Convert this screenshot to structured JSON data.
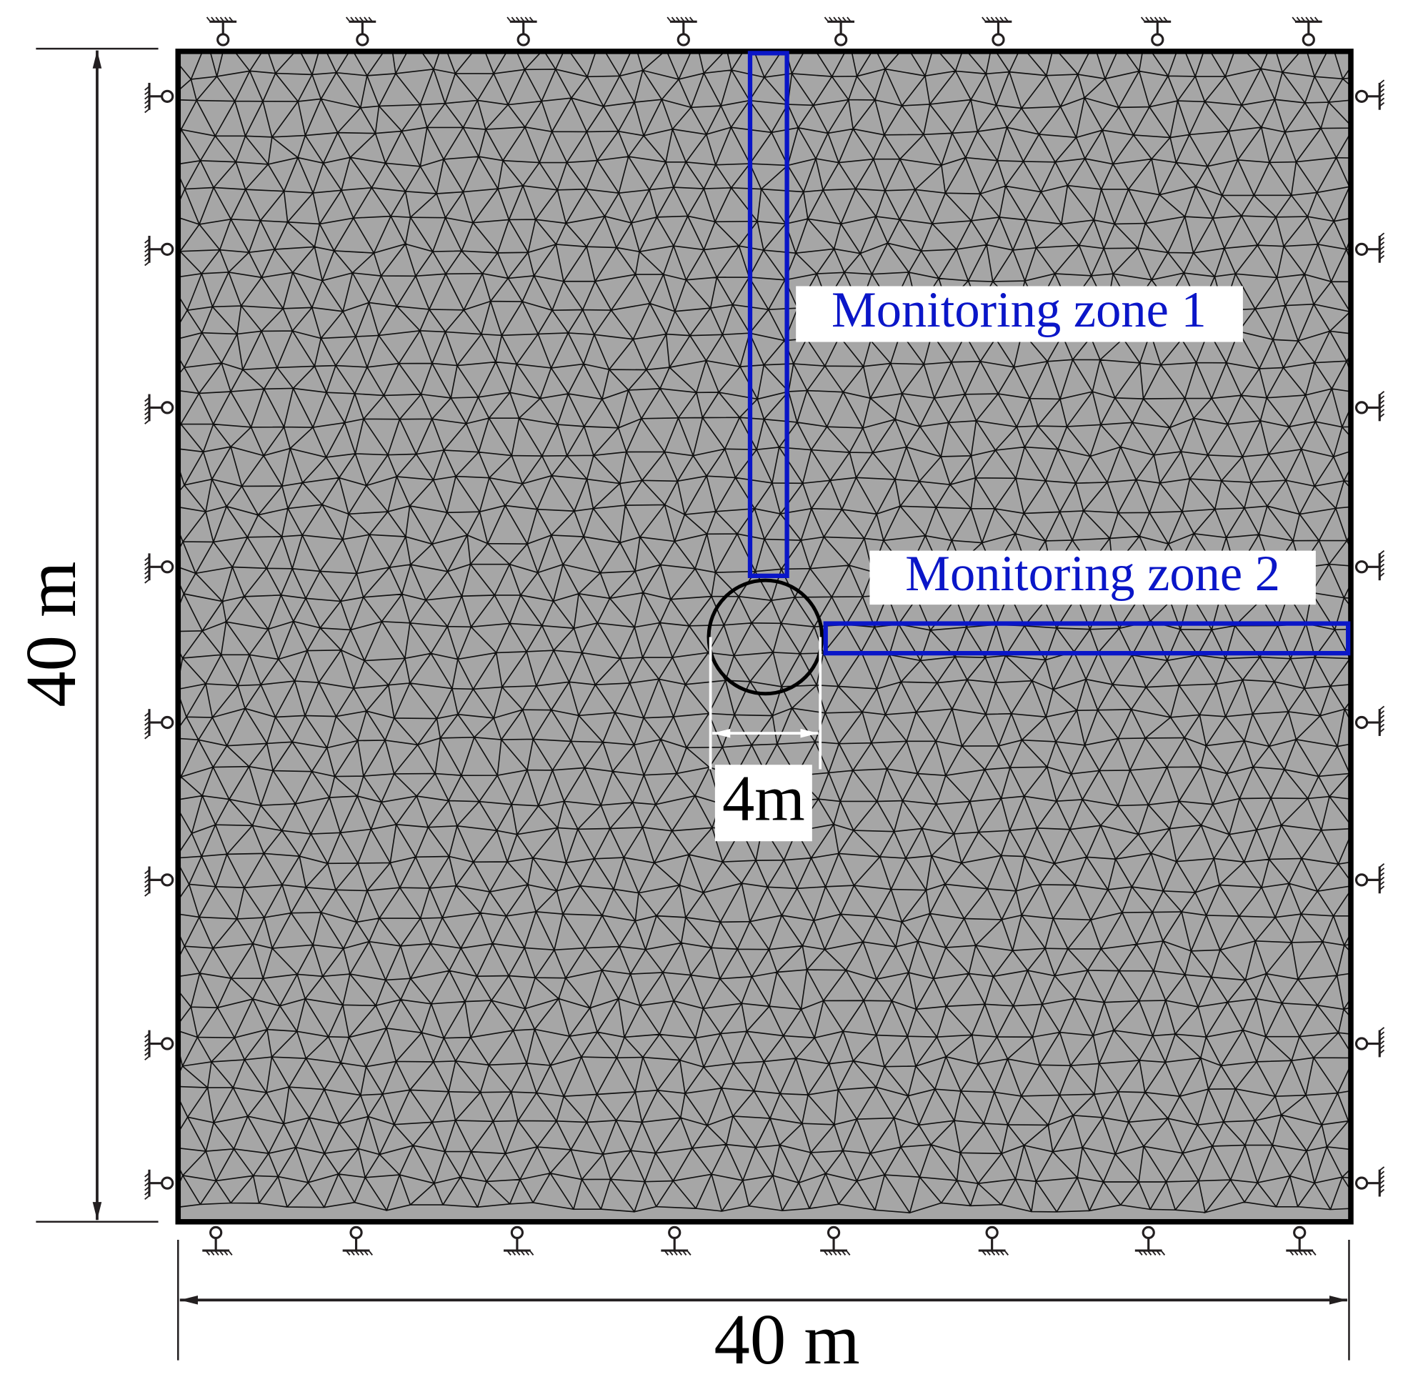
{
  "labels": {
    "zone1": "Monitoring zone 1",
    "zone2": "Monitoring zone 2",
    "diameter": "4m",
    "height": "40 m",
    "width": "40 m"
  }
}
